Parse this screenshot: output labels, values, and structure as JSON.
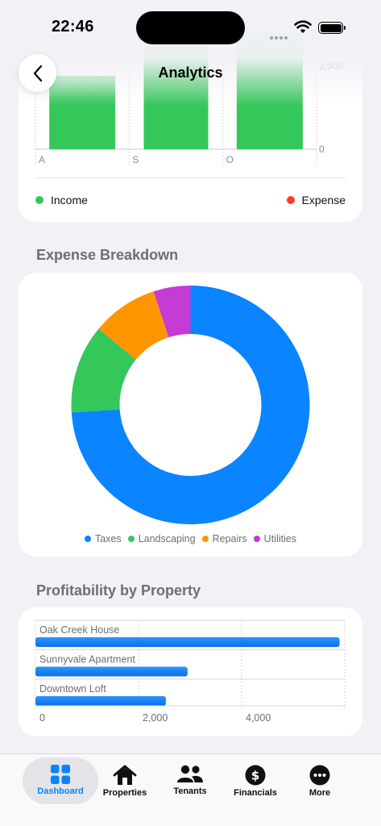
{
  "status_bar": {
    "time": "22:46"
  },
  "nav": {
    "title": "Analytics",
    "back_icon": "chevron-left-icon"
  },
  "colors": {
    "income": "#34c759",
    "expense": "#ff3b30",
    "accent": "#0a84ff",
    "taxes": "#0a84ff",
    "landscaping": "#34c759",
    "repairs": "#ff9500",
    "utilities": "#c63ad6"
  },
  "income_expense": {
    "legend": {
      "income": "Income",
      "expense": "Expense"
    },
    "chart_data": {
      "type": "bar",
      "categories": [
        "A",
        "S",
        "O"
      ],
      "series": [
        {
          "name": "Income",
          "values": [
            2200,
            3400,
            3500
          ]
        }
      ],
      "y_tick_labels": [
        "0",
        "2,500"
      ],
      "ylim": [
        0,
        3500
      ]
    }
  },
  "expense_breakdown": {
    "title": "Expense Breakdown",
    "chart_data": {
      "type": "pie",
      "categories": [
        "Taxes",
        "Landscaping",
        "Repairs",
        "Utilities"
      ],
      "values": [
        74,
        12,
        9,
        5
      ]
    }
  },
  "profitability": {
    "title": "Profitability by Property",
    "chart_data": {
      "type": "bar",
      "orientation": "horizontal",
      "categories": [
        "Oak Creek House",
        "Sunnyvale Apartment",
        "Downtown Loft"
      ],
      "values": [
        5900,
        2950,
        2530
      ],
      "x_tick_labels": [
        "0",
        "2,000",
        "4,000"
      ],
      "xlim": [
        0,
        6000
      ]
    }
  },
  "tabs": [
    {
      "label": "Dashboard",
      "icon": "grid-icon",
      "active": true
    },
    {
      "label": "Properties",
      "icon": "house-icon",
      "active": false
    },
    {
      "label": "Tenants",
      "icon": "people-icon",
      "active": false
    },
    {
      "label": "Financials",
      "icon": "dollar-icon",
      "active": false
    },
    {
      "label": "More",
      "icon": "ellipsis-icon",
      "active": false
    }
  ]
}
